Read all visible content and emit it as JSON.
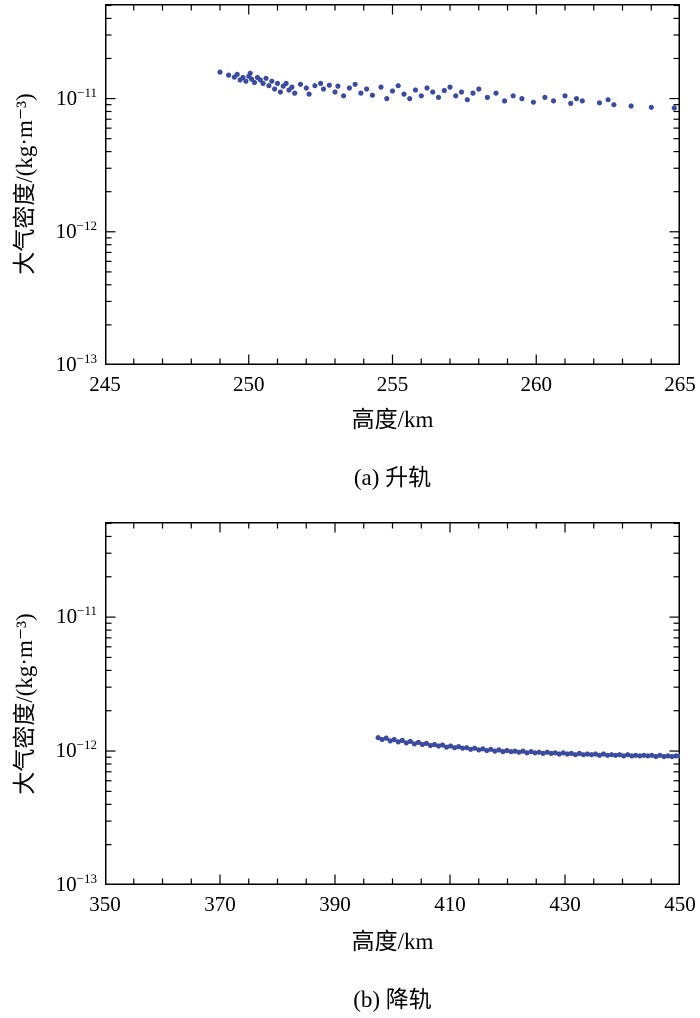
{
  "figure": {
    "background": "#ffffff",
    "frame_color": "#000000"
  },
  "chart_data": [
    {
      "type": "scatter",
      "panel_label": "(a) 升轨",
      "xlabel": "高度/km",
      "ylabel": "大气密度/(kg·m⁻³)",
      "xlim": [
        245,
        265
      ],
      "x_major_ticks": [
        245,
        250,
        255,
        260,
        265
      ],
      "x_minor_step": 1,
      "y_scale": "log",
      "ylim": [
        1e-13,
        5.2e-11
      ],
      "ylim_exp": [
        -13,
        -10.29
      ],
      "y_major_exponents": [
        -11,
        -12,
        -13
      ],
      "grid": false,
      "legend": "none",
      "point_color": "#3b4ba0",
      "point_radius": 2.6,
      "x": [
        249.0,
        249.3,
        249.5,
        249.6,
        249.7,
        249.8,
        249.9,
        250.0,
        250.05,
        250.1,
        250.2,
        250.3,
        250.4,
        250.5,
        250.6,
        250.7,
        250.8,
        250.9,
        251.0,
        251.1,
        251.2,
        251.3,
        251.4,
        251.5,
        251.6,
        251.8,
        252.0,
        252.1,
        252.3,
        252.5,
        252.6,
        252.8,
        253.0,
        253.1,
        253.3,
        253.5,
        253.7,
        253.9,
        254.1,
        254.3,
        254.6,
        254.8,
        255.0,
        255.2,
        255.4,
        255.6,
        255.8,
        256.0,
        256.2,
        256.4,
        256.6,
        256.8,
        257.0,
        257.2,
        257.4,
        257.6,
        257.8,
        258.0,
        258.3,
        258.6,
        258.9,
        259.2,
        259.5,
        259.9,
        260.3,
        260.6,
        261.0,
        261.2,
        261.4,
        261.6,
        262.2,
        262.5,
        262.7,
        263.3,
        264.0,
        264.8
      ],
      "y": [
        1.58e-11,
        1.5e-11,
        1.45e-11,
        1.52e-11,
        1.38e-11,
        1.44e-11,
        1.35e-11,
        1.47e-11,
        1.55e-11,
        1.4e-11,
        1.32e-11,
        1.44e-11,
        1.38e-11,
        1.3e-11,
        1.42e-11,
        1.25e-11,
        1.35e-11,
        1.18e-11,
        1.3e-11,
        1.12e-11,
        1.24e-11,
        1.3e-11,
        1.16e-11,
        1.22e-11,
        1.1e-11,
        1.28e-11,
        1.2e-11,
        1.08e-11,
        1.25e-11,
        1.3e-11,
        1.18e-11,
        1.26e-11,
        1.12e-11,
        1.24e-11,
        1.05e-11,
        1.2e-11,
        1.28e-11,
        1.1e-11,
        1.18e-11,
        1.06e-11,
        1.22e-11,
        1e-11,
        1.14e-11,
        1.25e-11,
        1.08e-11,
        1e-11,
        1.16e-11,
        1.05e-11,
        1.2e-11,
        1.12e-11,
        1.02e-11,
        1.15e-11,
        1.22e-11,
        1.05e-11,
        1.12e-11,
        9.8e-12,
        1.1e-11,
        1.18e-11,
        1.02e-11,
        1.1e-11,
        9.6e-12,
        1.05e-11,
        1e-11,
        9.4e-12,
        1.02e-11,
        9.6e-12,
        1.05e-11,
        9.2e-12,
        1e-11,
        9.6e-12,
        9.3e-12,
        9.8e-12,
        9e-12,
        8.8e-12,
        8.6e-12,
        8.5e-12
      ]
    },
    {
      "type": "scatter",
      "panel_label": "(b) 降轨",
      "xlabel": "高度/km",
      "ylabel": "大气密度/(kg·m⁻³)",
      "xlim": [
        350,
        450
      ],
      "x_major_ticks": [
        350,
        370,
        390,
        410,
        430,
        450
      ],
      "x_minor_step": 5,
      "y_scale": "log",
      "ylim": [
        1e-13,
        5.2e-11
      ],
      "ylim_exp": [
        -13,
        -10.29
      ],
      "y_major_exponents": [
        -11,
        -12,
        -13
      ],
      "grid": false,
      "legend": "none",
      "point_color": "#3b4ba0",
      "point_radius": 2.6,
      "x": [
        397.5,
        398.2,
        398.9,
        399.6,
        400.3,
        401.0,
        401.7,
        402.4,
        403.1,
        403.8,
        404.5,
        405.2,
        405.9,
        406.6,
        407.3,
        408.0,
        408.7,
        409.4,
        410.1,
        410.8,
        411.5,
        412.2,
        412.9,
        413.6,
        414.3,
        415.0,
        415.7,
        416.4,
        417.1,
        417.8,
        418.5,
        419.2,
        419.9,
        420.6,
        421.3,
        422.0,
        422.7,
        423.4,
        424.1,
        424.8,
        425.5,
        426.2,
        426.9,
        427.6,
        428.3,
        429.0,
        429.7,
        430.4,
        431.1,
        431.8,
        432.5,
        433.2,
        433.9,
        434.6,
        435.3,
        436.0,
        436.7,
        437.4,
        438.1,
        438.8,
        439.5,
        440.2,
        440.9,
        441.6,
        442.3,
        443.0,
        443.7,
        444.4,
        445.1,
        445.8,
        446.5,
        447.2,
        447.9,
        448.6,
        449.3,
        450.0
      ],
      "y": [
        1.26e-12,
        1.22e-12,
        1.25e-12,
        1.19e-12,
        1.22e-12,
        1.17e-12,
        1.2e-12,
        1.15e-12,
        1.18e-12,
        1.13e-12,
        1.16e-12,
        1.12e-12,
        1.14e-12,
        1.1e-12,
        1.12e-12,
        1.09e-12,
        1.11e-12,
        1.07e-12,
        1.09e-12,
        1.06e-12,
        1.08e-12,
        1.05e-12,
        1.06e-12,
        1.03e-12,
        1.05e-12,
        1.02e-12,
        1.04e-12,
        1.01e-12,
        1.03e-12,
        1e-12,
        1.02e-12,
        9.9e-13,
        1.01e-12,
        9.9e-13,
        1e-12,
        9.8e-13,
        1e-12,
        9.7e-13,
        9.9e-13,
        9.7e-13,
        9.8e-13,
        9.6e-13,
        9.8e-13,
        9.6e-13,
        9.7e-13,
        9.5e-13,
        9.7e-13,
        9.5e-13,
        9.6e-13,
        9.4e-13,
        9.6e-13,
        9.4e-13,
        9.5e-13,
        9.4e-13,
        9.5e-13,
        9.3e-13,
        9.5e-13,
        9.3e-13,
        9.4e-13,
        9.3e-13,
        9.4e-13,
        9.2e-13,
        9.4e-13,
        9.2e-13,
        9.3e-13,
        9.2e-13,
        9.3e-13,
        9.2e-13,
        9.3e-13,
        9.1e-13,
        9.3e-13,
        9.1e-13,
        9.2e-13,
        9.1e-13,
        9.2e-13,
        9.2e-13
      ]
    }
  ]
}
